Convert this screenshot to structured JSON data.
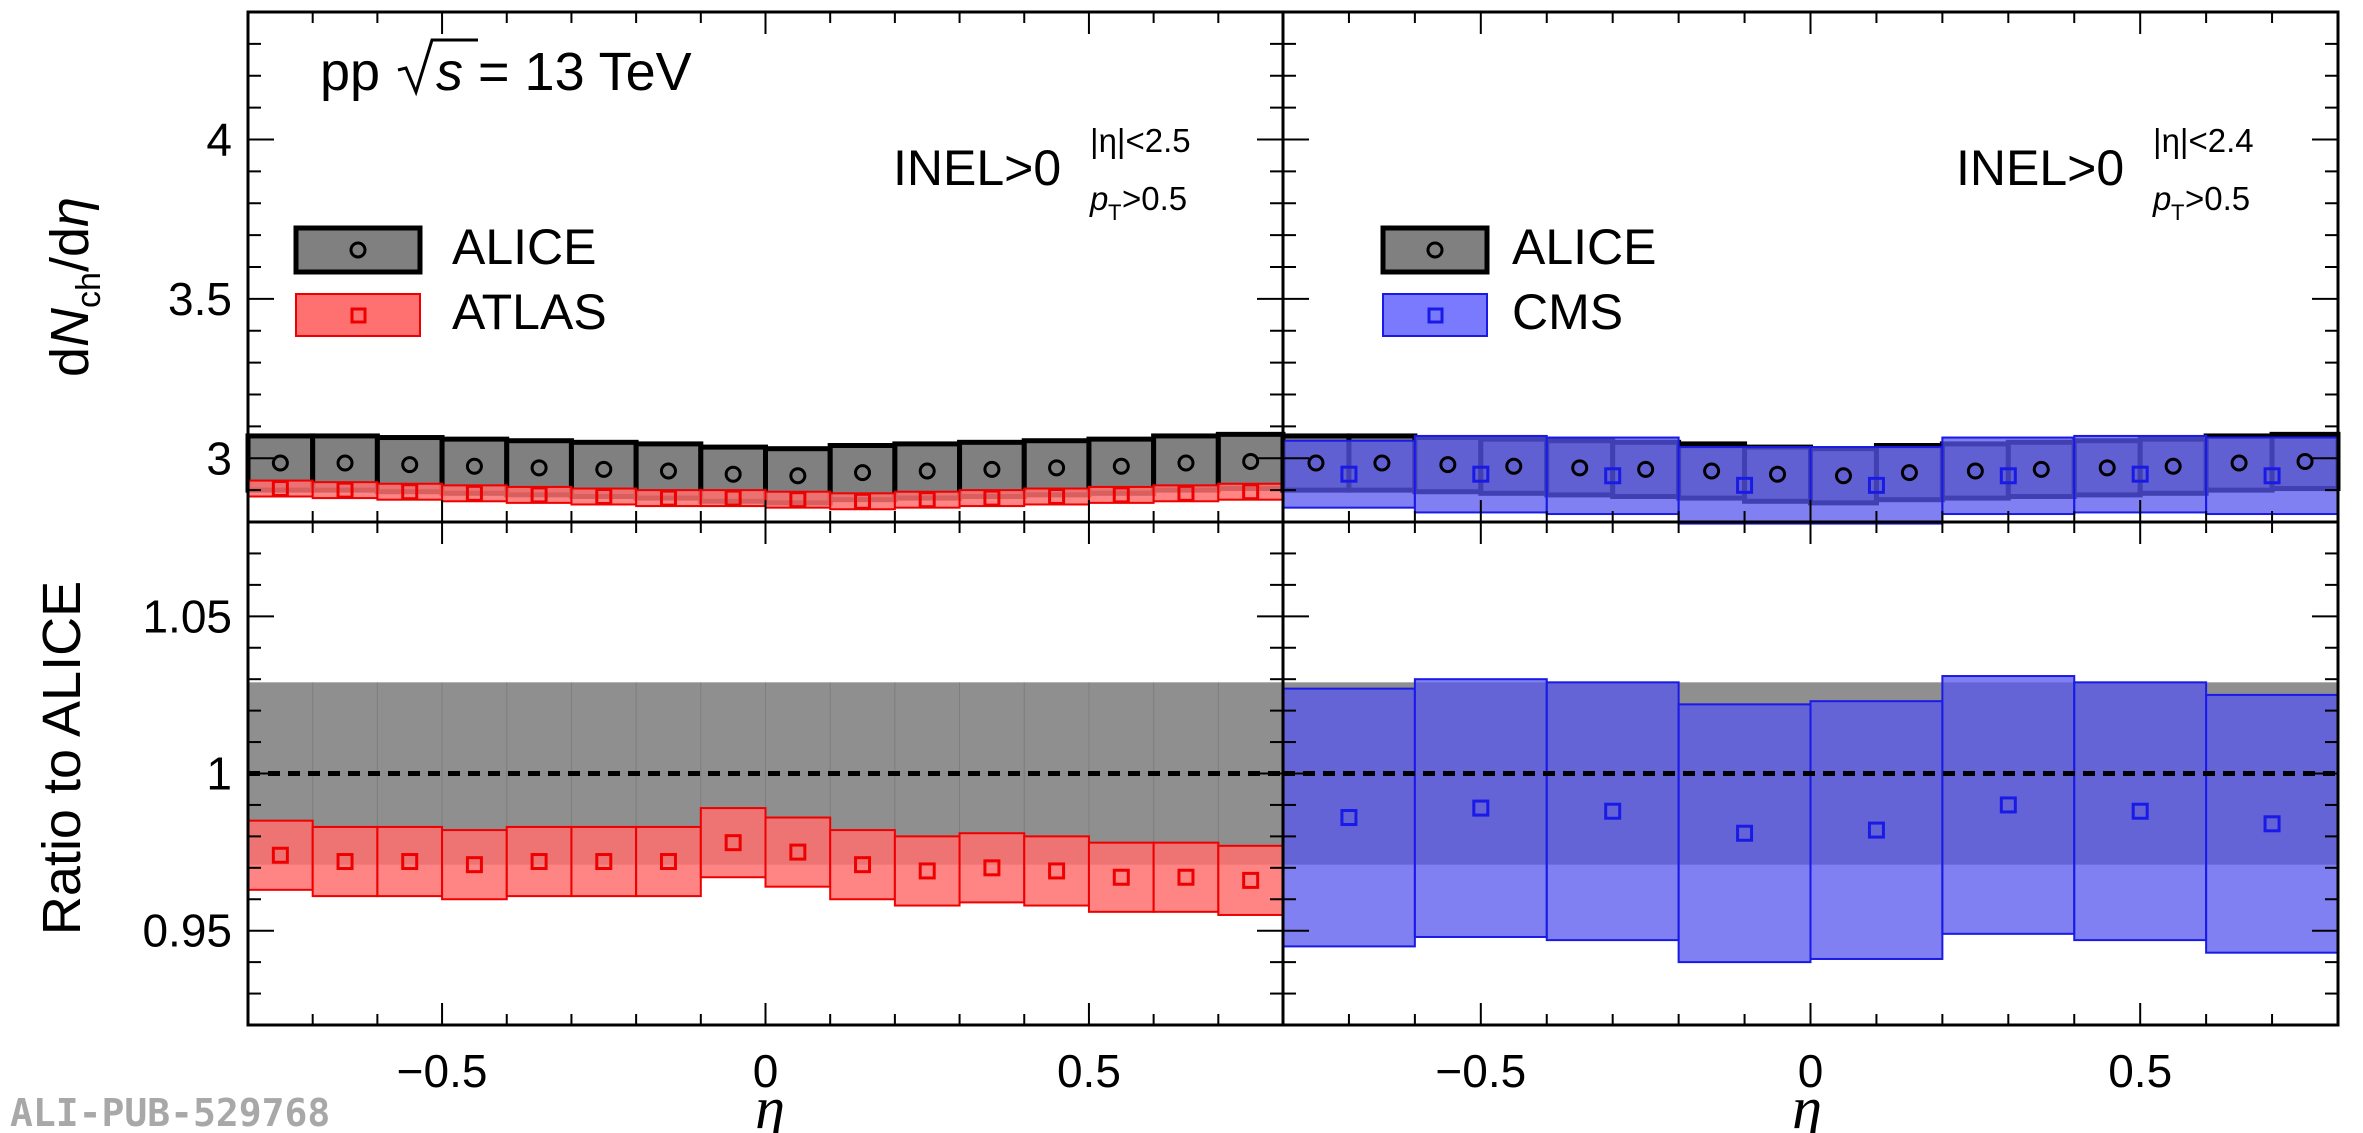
{
  "chart_data": [
    {
      "type": "scatter",
      "panel": "top-left",
      "annotation": {
        "system": "pp",
        "energy_prefix": "s",
        "energy_value": "= 13 TeV",
        "selection_main": "INEL>0",
        "selection_sup": "|η|<2.5",
        "selection_sub_p": "p",
        "selection_sub_T": "T",
        "selection_sub_rest": ">0.5"
      },
      "ylabel_prefix": "d",
      "ylabel_N": "N",
      "ylabel_sub": "ch",
      "ylabel_suffix": "/d",
      "ylabel_eta": "η",
      "xlim": [
        -0.8,
        0.8
      ],
      "ylim": [
        2.8,
        4.4
      ],
      "yticks": [
        "3",
        "3.5",
        "4"
      ],
      "legend": [
        "ALICE",
        "ATLAS"
      ],
      "legend_position": "left",
      "series": [
        {
          "name": "ALICE",
          "color": "#000000",
          "fill": "#808080",
          "marker": "circle",
          "x": [
            -0.75,
            -0.65,
            -0.55,
            -0.45,
            -0.35,
            -0.25,
            -0.15,
            -0.05,
            0.05,
            0.15,
            0.25,
            0.35,
            0.45,
            0.55,
            0.65,
            0.75
          ],
          "y": [
            2.985,
            2.985,
            2.98,
            2.975,
            2.97,
            2.965,
            2.96,
            2.95,
            2.945,
            2.955,
            2.96,
            2.965,
            2.97,
            2.975,
            2.985,
            2.99
          ],
          "err": [
            0.085,
            0.085,
            0.085,
            0.085,
            0.085,
            0.085,
            0.085,
            0.085,
            0.085,
            0.085,
            0.085,
            0.085,
            0.085,
            0.085,
            0.085,
            0.085
          ]
        },
        {
          "name": "ATLAS",
          "color": "#ee0000",
          "fill": "#ff7070",
          "marker": "square",
          "x": [
            -0.75,
            -0.65,
            -0.55,
            -0.45,
            -0.35,
            -0.25,
            -0.15,
            -0.05,
            0.05,
            0.15,
            0.25,
            0.35,
            0.45,
            0.55,
            0.65,
            0.75
          ],
          "y": [
            2.905,
            2.9,
            2.895,
            2.89,
            2.885,
            2.88,
            2.875,
            2.875,
            2.87,
            2.865,
            2.87,
            2.875,
            2.88,
            2.885,
            2.89,
            2.895
          ],
          "err": [
            0.025,
            0.025,
            0.025,
            0.025,
            0.025,
            0.025,
            0.025,
            0.025,
            0.025,
            0.025,
            0.025,
            0.025,
            0.025,
            0.025,
            0.025,
            0.025
          ]
        }
      ]
    },
    {
      "type": "scatter",
      "panel": "top-right",
      "annotation": {
        "selection_main": "INEL>0",
        "selection_sup": "|η|<2.4",
        "selection_sub_p": "p",
        "selection_sub_T": "T",
        "selection_sub_rest": ">0.5"
      },
      "xlim": [
        -0.8,
        0.8
      ],
      "ylim": [
        2.8,
        4.4
      ],
      "legend": [
        "ALICE",
        "CMS"
      ],
      "legend_position": "left",
      "series": [
        {
          "name": "ALICE",
          "color": "#000000",
          "fill": "#808080",
          "marker": "circle",
          "x": [
            -0.75,
            -0.65,
            -0.55,
            -0.45,
            -0.35,
            -0.25,
            -0.15,
            -0.05,
            0.05,
            0.15,
            0.25,
            0.35,
            0.45,
            0.55,
            0.65,
            0.75
          ],
          "y": [
            2.985,
            2.985,
            2.98,
            2.975,
            2.97,
            2.965,
            2.96,
            2.95,
            2.945,
            2.955,
            2.96,
            2.965,
            2.97,
            2.975,
            2.985,
            2.99
          ],
          "err": [
            0.085,
            0.085,
            0.085,
            0.085,
            0.085,
            0.085,
            0.085,
            0.085,
            0.085,
            0.085,
            0.085,
            0.085,
            0.085,
            0.085,
            0.085,
            0.085
          ]
        },
        {
          "name": "CMS",
          "color": "#1a1ae6",
          "fill": "#5555ee",
          "marker": "square",
          "x": [
            -0.7,
            -0.5,
            -0.3,
            -0.1,
            0.1,
            0.3,
            0.5,
            0.7
          ],
          "y": [
            2.95,
            2.95,
            2.945,
            2.915,
            2.915,
            2.945,
            2.95,
            2.945
          ],
          "err": [
            0.105,
            0.12,
            0.12,
            0.12,
            0.12,
            0.12,
            0.12,
            0.12
          ]
        }
      ]
    },
    {
      "type": "scatter",
      "panel": "bottom-left",
      "ylabel": "Ratio to ALICE",
      "xlabel": "η",
      "xlim": [
        -0.8,
        0.8
      ],
      "ylim": [
        0.92,
        1.08
      ],
      "xticks": [
        "−0.5",
        "0",
        "0.5"
      ],
      "yticks": [
        "0.95",
        "1",
        "1.05"
      ],
      "alice_band": [
        0.971,
        1.029
      ],
      "reference_line": 1,
      "series": [
        {
          "name": "ATLAS",
          "color": "#ee0000",
          "fill": "#ff7070",
          "marker": "square",
          "x": [
            -0.75,
            -0.65,
            -0.55,
            -0.45,
            -0.35,
            -0.25,
            -0.15,
            -0.05,
            0.05,
            0.15,
            0.25,
            0.35,
            0.45,
            0.55,
            0.65,
            0.75
          ],
          "y": [
            0.974,
            0.972,
            0.972,
            0.971,
            0.972,
            0.972,
            0.972,
            0.978,
            0.975,
            0.971,
            0.969,
            0.97,
            0.969,
            0.967,
            0.967,
            0.966
          ],
          "err": [
            0.011,
            0.011,
            0.011,
            0.011,
            0.011,
            0.011,
            0.011,
            0.011,
            0.011,
            0.011,
            0.011,
            0.011,
            0.011,
            0.011,
            0.011,
            0.011
          ]
        }
      ]
    },
    {
      "type": "scatter",
      "panel": "bottom-right",
      "xlabel": "η",
      "xlim": [
        -0.8,
        0.8
      ],
      "ylim": [
        0.92,
        1.08
      ],
      "xticks": [
        "−0.5",
        "0",
        "0.5"
      ],
      "alice_band": [
        0.971,
        1.029
      ],
      "reference_line": 1,
      "series": [
        {
          "name": "CMS",
          "color": "#1a1ae6",
          "fill": "#5555ee",
          "marker": "square",
          "x": [
            -0.7,
            -0.5,
            -0.3,
            -0.1,
            0.1,
            0.3,
            0.5,
            0.7
          ],
          "y": [
            0.986,
            0.989,
            0.988,
            0.981,
            0.982,
            0.99,
            0.988,
            0.984
          ],
          "err": [
            0.041,
            0.041,
            0.041,
            0.041,
            0.041,
            0.041,
            0.041,
            0.041
          ]
        }
      ]
    }
  ],
  "watermark": "ALI-PUB-529768"
}
